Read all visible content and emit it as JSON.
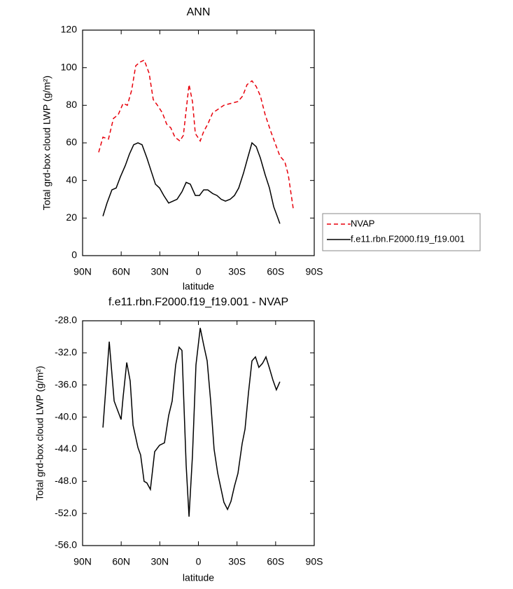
{
  "chart_data": [
    {
      "type": "line",
      "title": "ANN",
      "x_label": "latitude",
      "y_label": "Total grd-box cloud LWP (g/m²)",
      "xlim": [
        90,
        -90
      ],
      "xticks": [
        {
          "value": 90,
          "label": "90N"
        },
        {
          "value": 60,
          "label": "60N"
        },
        {
          "value": 30,
          "label": "30N"
        },
        0,
        {
          "value": -30,
          "label": "30S"
        },
        {
          "value": -60,
          "label": "60S"
        },
        {
          "value": -90,
          "label": "90S"
        }
      ],
      "ylim": [
        0,
        120
      ],
      "yticks": [
        0,
        20,
        40,
        60,
        80,
        100,
        120
      ],
      "legend": "right",
      "series": [
        {
          "name": "NVAP",
          "color": "#e8000b",
          "dashed": true,
          "x": [
            77.5,
            74.2,
            69.9,
            66,
            62.3,
            58.5,
            55.2,
            51.9,
            48.7,
            45.4,
            42.1,
            38.3,
            35.1,
            31.8,
            28,
            24.7,
            21.5,
            18.2,
            14.4,
            11.7,
            7.3,
            4.6,
            2.4,
            -1.4,
            -4.1,
            -7.3,
            -11.1,
            -15.5,
            -19.8,
            -25.3,
            -30.7,
            -34.5,
            -37.8,
            -41.6,
            -44.9,
            -48.1,
            -51.9,
            -56.3,
            -59.5,
            -63.3,
            -67.1,
            -69.8,
            -73.7
          ],
          "values": [
            55,
            63,
            62,
            73,
            75,
            81,
            80,
            88,
            101,
            103,
            104,
            97,
            83,
            80,
            76,
            70,
            68,
            63,
            61,
            64,
            91,
            82,
            65,
            61,
            66,
            70,
            76,
            78,
            80,
            81,
            82,
            85,
            91,
            93,
            90,
            85,
            75,
            66,
            60,
            53,
            50,
            43,
            25
          ]
        },
        {
          "name": "f.e11.rbn.F2000.f19_f19.001",
          "color": "#000000",
          "dashed": false,
          "x": [
            74.2,
            71,
            67.2,
            63.9,
            60.6,
            56.8,
            53.6,
            50.3,
            47,
            43.8,
            40,
            36.7,
            33.4,
            30.2,
            26.9,
            23.1,
            19.8,
            16.6,
            12.8,
            9.5,
            6.3,
            2.4,
            -0.8,
            -4.1,
            -7.3,
            -11.1,
            -14.4,
            -17.7,
            -21,
            -24.7,
            -28,
            -31.3,
            -35.1,
            -38.3,
            -41.6,
            -44.9,
            -48.1,
            -51.9,
            -55.2,
            -58.5,
            -61.7,
            -63.3
          ],
          "values": [
            21,
            28,
            35,
            36,
            42,
            48,
            54,
            59,
            60,
            59,
            52,
            45,
            38,
            36,
            32,
            28,
            29,
            30,
            34,
            39,
            38,
            32,
            32,
            35,
            35,
            33,
            32,
            30,
            29,
            30,
            32,
            36,
            44,
            52,
            60,
            58,
            52,
            43,
            36,
            26,
            20,
            17
          ]
        }
      ]
    },
    {
      "type": "line",
      "title": "f.e11.rbn.F2000.f19_f19.001 - NVAP",
      "x_label": "latitude",
      "y_label": "Total grd-box cloud LWP (g/m²)",
      "xlim": [
        90,
        -90
      ],
      "xticks": [
        {
          "value": 90,
          "label": "90N"
        },
        {
          "value": 60,
          "label": "60N"
        },
        {
          "value": 30,
          "label": "30N"
        },
        0,
        {
          "value": -30,
          "label": "30S"
        },
        {
          "value": -60,
          "label": "60S"
        },
        {
          "value": -90,
          "label": "90S"
        }
      ],
      "ylim": [
        -56,
        -28
      ],
      "yticks": [
        {
          "value": -56,
          "label": "-56.0"
        },
        {
          "value": -52,
          "label": "-52.0"
        },
        {
          "value": -48,
          "label": "-48.0"
        },
        {
          "value": -44,
          "label": "-44.0"
        },
        {
          "value": -40,
          "label": "-40.0"
        },
        {
          "value": -36,
          "label": "-36.0"
        },
        {
          "value": -32,
          "label": "-32.0"
        },
        {
          "value": -28,
          "label": "-28.0"
        }
      ],
      "series": [
        {
          "color": "#000000",
          "dashed": false,
          "x": [
            74.2,
            69.3,
            65.5,
            60.1,
            58.5,
            55.7,
            53,
            50.8,
            47,
            44.9,
            42.2,
            40,
            37.3,
            34,
            30.2,
            26.4,
            23.1,
            20.4,
            17.7,
            15,
            12.8,
            9.5,
            7.3,
            4.6,
            1.9,
            -1.4,
            -4.1,
            -6.8,
            -9.5,
            -12.2,
            -15,
            -17.7,
            -19.8,
            -22.6,
            -25.3,
            -28,
            -30.7,
            -34,
            -36.2,
            -38.9,
            -41.6,
            -44.3,
            -47,
            -49.8,
            -52.5,
            -55.2,
            -57.9,
            -60.6,
            -63.3
          ],
          "values": [
            -41.3,
            -30.6,
            -38,
            -40.3,
            -37.5,
            -33.2,
            -35.5,
            -41,
            -43.8,
            -44.7,
            -48,
            -48.2,
            -49,
            -44.3,
            -43.5,
            -43.2,
            -39.8,
            -38,
            -33.5,
            -31.3,
            -31.7,
            -46,
            -52.4,
            -44.8,
            -33.5,
            -28.9,
            -31,
            -33,
            -38,
            -44,
            -47,
            -49,
            -50.6,
            -51.5,
            -50.5,
            -48.6,
            -47,
            -43.3,
            -41.5,
            -37,
            -33,
            -32.5,
            -33.8,
            -33.3,
            -32.5,
            -33.9,
            -35.4,
            -36.6,
            -35.6
          ]
        }
      ]
    }
  ]
}
